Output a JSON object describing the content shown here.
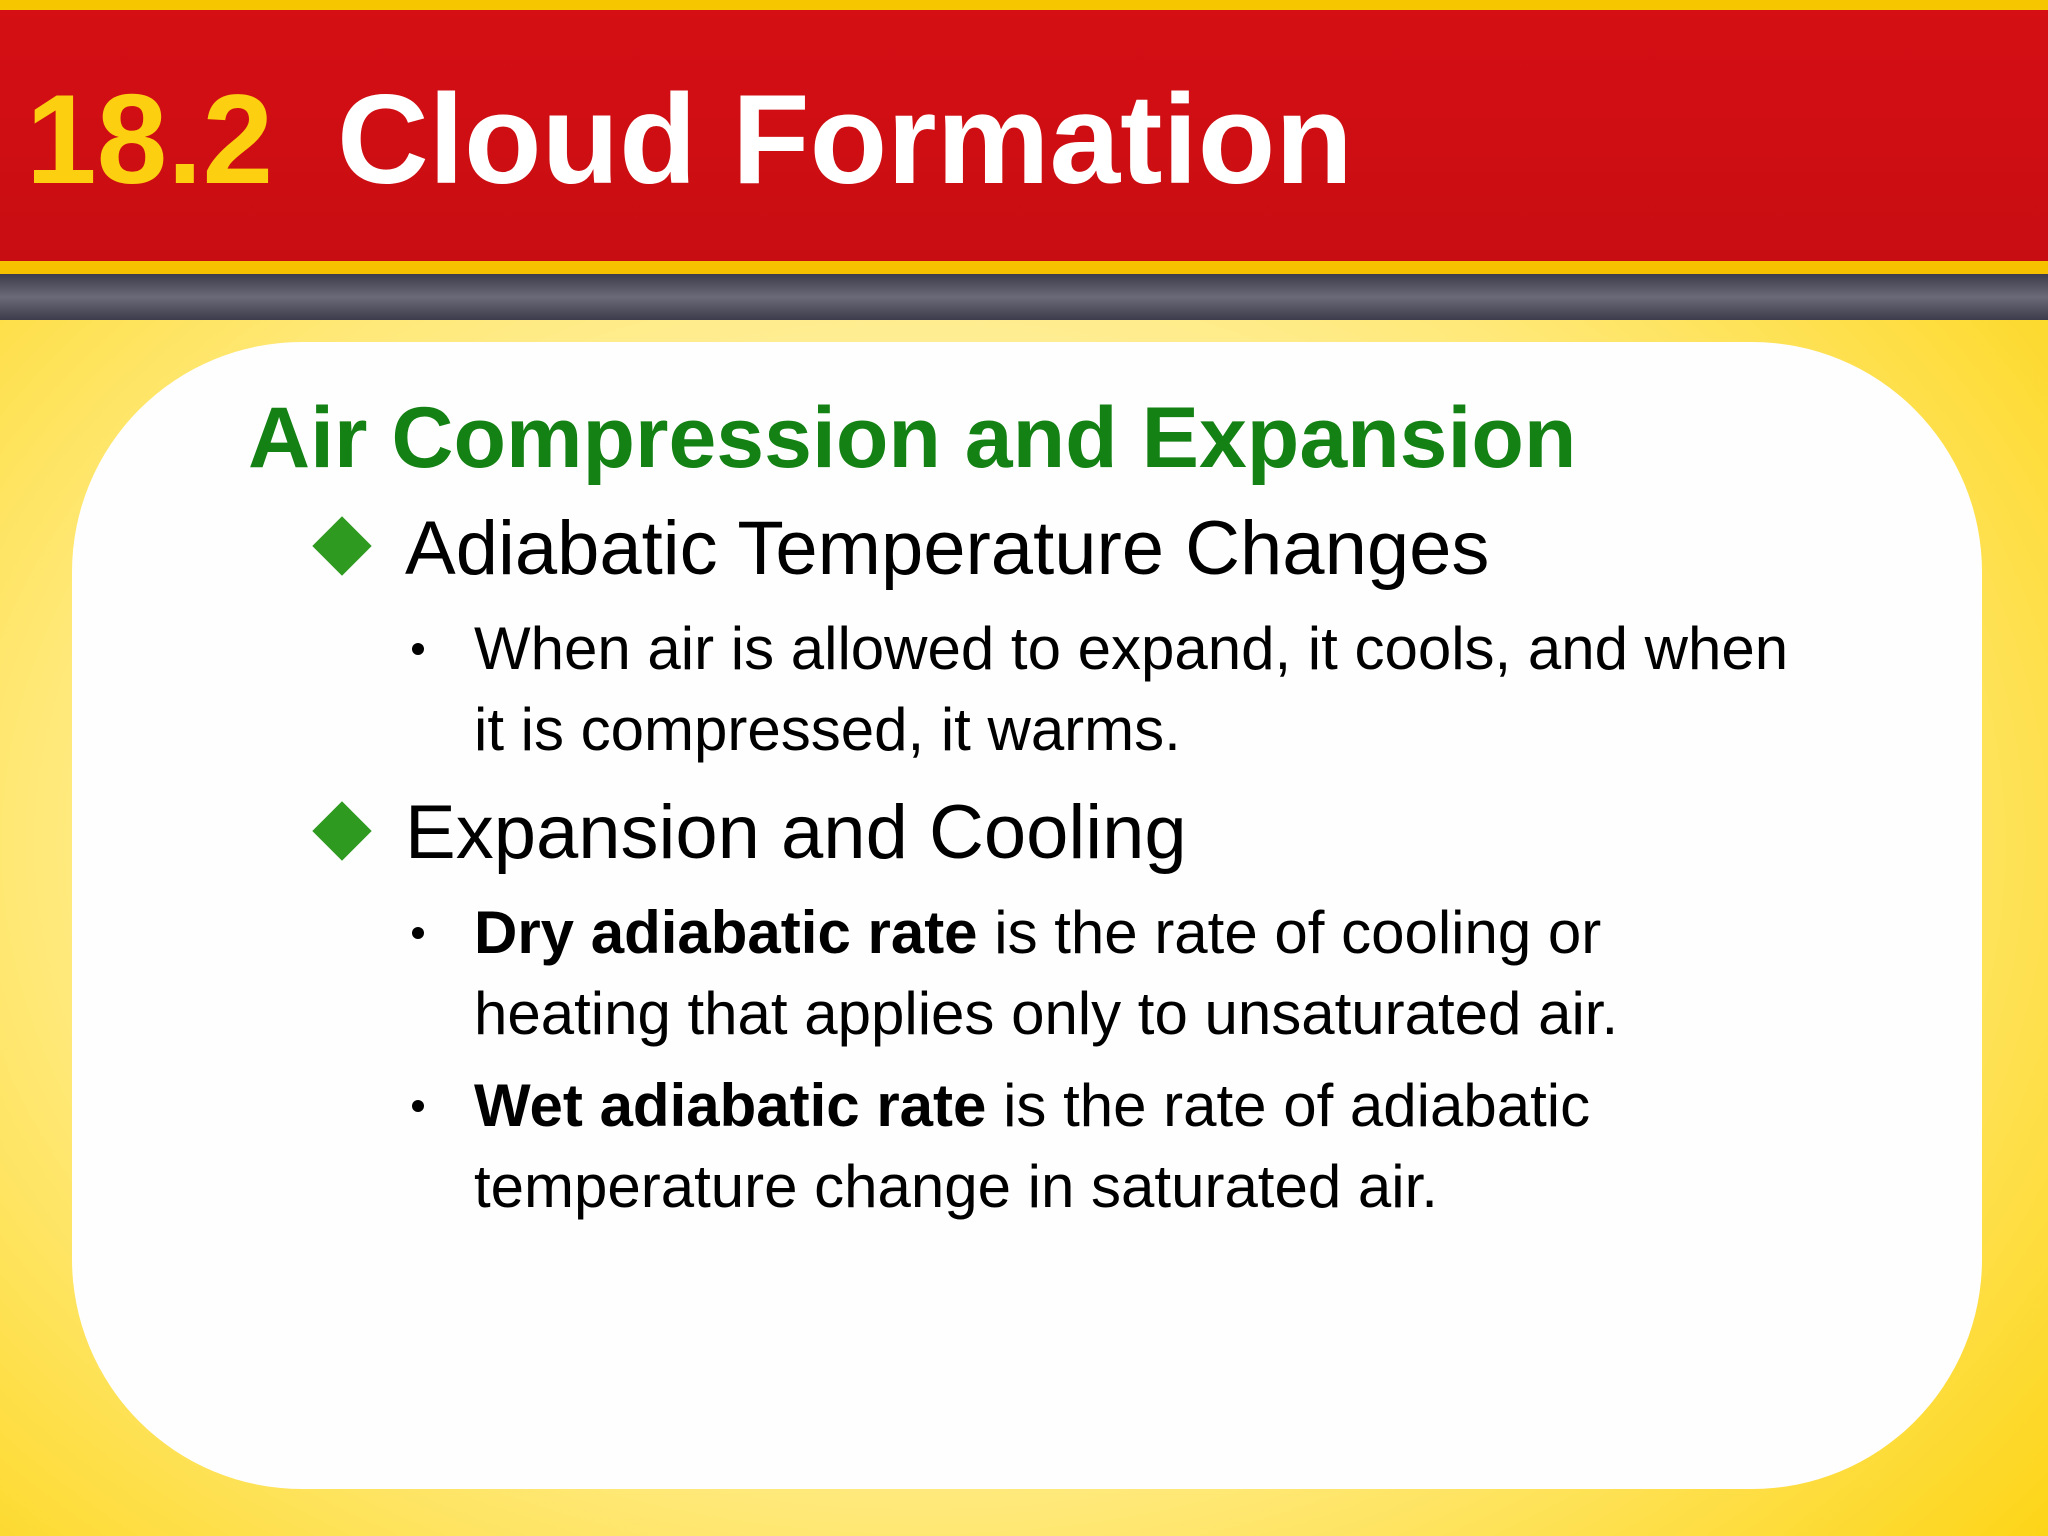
{
  "header": {
    "number": "18.2",
    "title": "Cloud Formation"
  },
  "section": {
    "heading": "Air Compression and Expansion",
    "items": [
      {
        "heading": "Adiabatic Temperature Changes",
        "bullets": [
          {
            "text": "When air is allowed to expand, it cools, and when it is compressed, it warms."
          }
        ]
      },
      {
        "heading": "Expansion and Cooling",
        "bullets": [
          {
            "term": "Dry adiabatic rate",
            "text": "is the rate of cooling or heating that applies only to unsaturated air."
          },
          {
            "term": "Wet adiabatic rate",
            "text": "is the rate of adiabatic temperature change in saturated air."
          }
        ]
      }
    ]
  }
}
